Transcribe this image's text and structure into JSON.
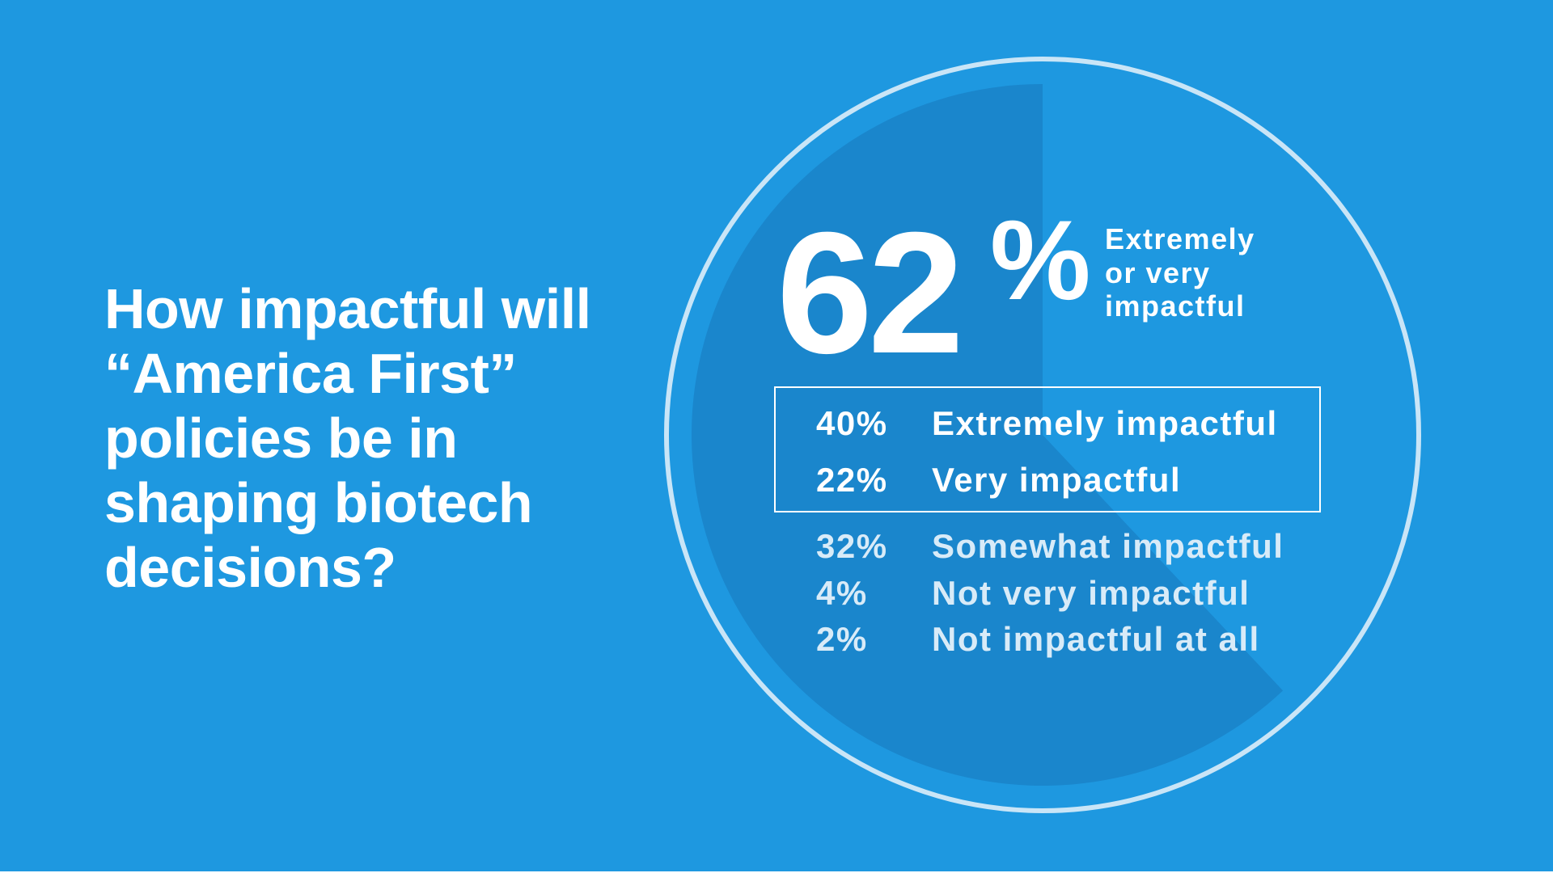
{
  "question": {
    "lines": [
      "How impactful will",
      "“America First”",
      "policies be in",
      "shaping biotech",
      "decisions?"
    ]
  },
  "colors": {
    "background": "#1e98e0",
    "wedge": "#1a86cc",
    "ring": "#c9e5f7",
    "text": "#ffffff",
    "muted_text": "#d8ebf8"
  },
  "chart_data": {
    "type": "pie",
    "title": "How impactful will “America First” policies be in shaping biotech decisions?",
    "highlight": {
      "value": "62",
      "symbol": "%",
      "label_lines": [
        "Extremely",
        "or very",
        "impactful"
      ],
      "fraction": 0.62
    },
    "categories": [
      "Extremely impactful",
      "Very impactful",
      "Somewhat impactful",
      "Not very impactful",
      "Not impactful at all"
    ],
    "values": [
      40,
      22,
      32,
      4,
      2
    ],
    "value_labels": [
      "40%",
      "22%",
      "32%",
      "4%",
      "2%"
    ],
    "highlighted_categories": [
      "Extremely impactful",
      "Very impactful"
    ]
  }
}
